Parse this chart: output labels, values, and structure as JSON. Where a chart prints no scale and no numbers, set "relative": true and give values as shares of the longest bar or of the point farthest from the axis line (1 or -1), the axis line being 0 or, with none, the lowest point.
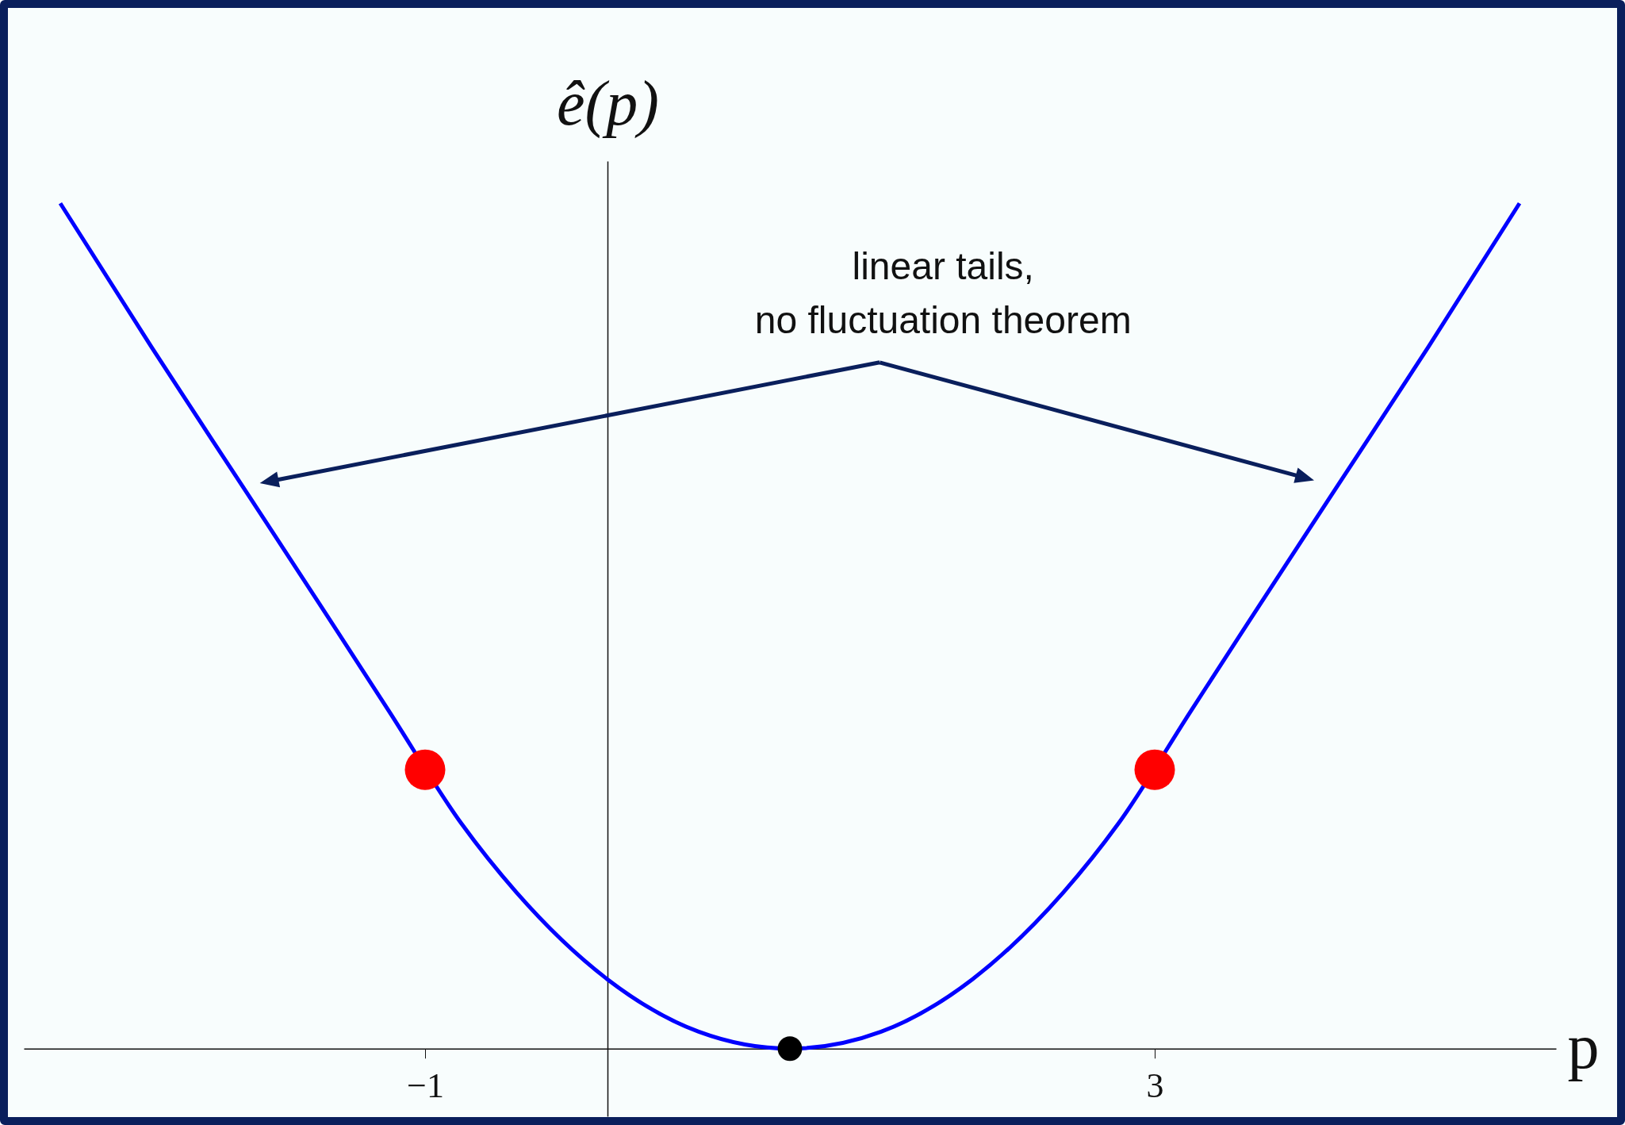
{
  "chart_data": {
    "type": "line",
    "xlabel": "p",
    "ylabel": "ê(p)",
    "relative": true,
    "xlim": [
      -3.2,
      5.2
    ],
    "xticks": [
      {
        "value": -1,
        "label": "−1"
      },
      {
        "value": 3,
        "label": "3"
      }
    ],
    "annotations": [
      "linear tails,\nno fluctuation theorem"
    ],
    "series": [
      {
        "color": "#0000ff",
        "x": [
          -3,
          -2.5,
          -2,
          -1.5,
          -1.2,
          -0.8,
          -0.5,
          0,
          0.5,
          1,
          1.5,
          2,
          2.5,
          2.8,
          3.2,
          3.5,
          4,
          4.5,
          5
        ],
        "values": [
          1.0,
          0.83,
          0.665,
          0.5,
          0.4,
          0.266,
          0.185,
          0.082,
          0.02,
          0,
          0.02,
          0.082,
          0.185,
          0.266,
          0.4,
          0.5,
          0.665,
          0.83,
          1.0
        ]
      },
      {
        "type": "scatter",
        "color": "#ff0000",
        "marker": "circle",
        "x": [
          -1,
          3
        ],
        "values": [
          0.33,
          0.33
        ]
      },
      {
        "type": "scatter",
        "color": "#000000",
        "marker": "circle",
        "x": [
          1
        ],
        "values": [
          0
        ]
      }
    ]
  }
}
